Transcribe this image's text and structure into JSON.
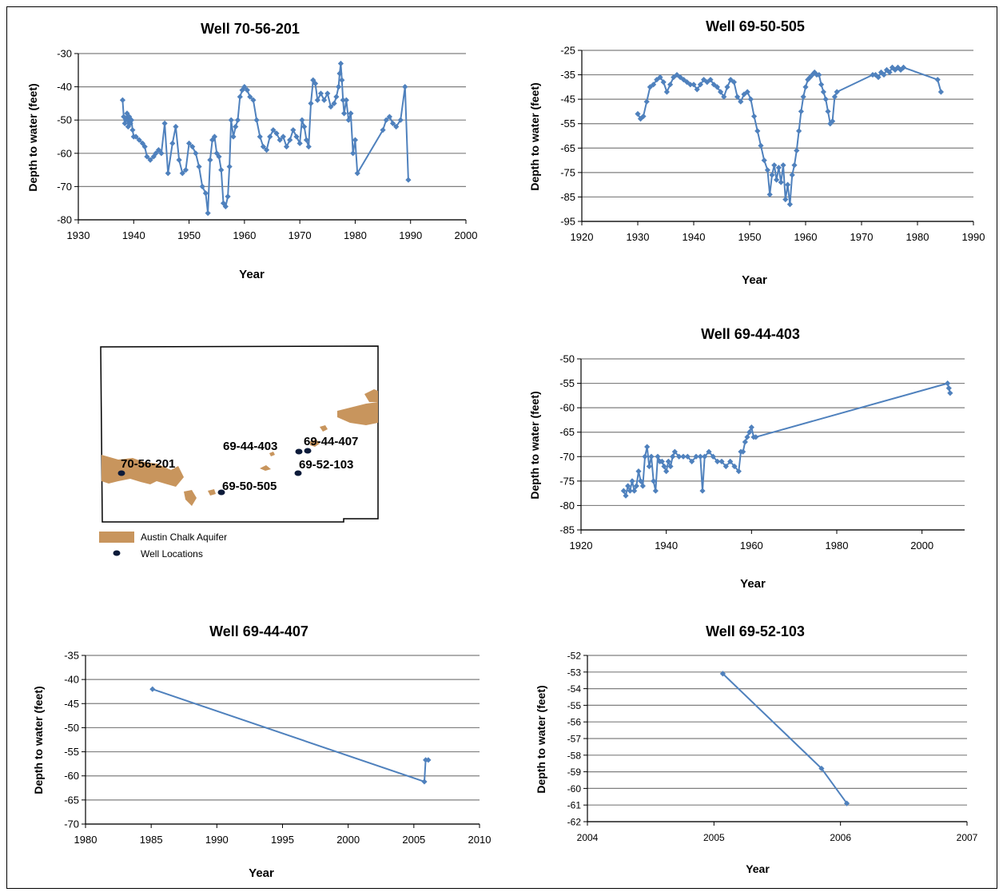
{
  "chart_data": [
    {
      "id": "w1",
      "type": "line",
      "title": "Well  70-56-201",
      "xlabel": "Year",
      "ylabel": "Depth to water (feet)",
      "xlim": [
        1930,
        2000
      ],
      "ylim": [
        -80,
        -30
      ],
      "xticks": [
        1930,
        1940,
        1950,
        1960,
        1970,
        1980,
        1990,
        2000
      ],
      "yticks": [
        -30,
        -40,
        -50,
        -60,
        -70,
        -80
      ],
      "grid": true,
      "series": [
        {
          "x": [
            1938,
            1938.2,
            1938.4,
            1938.6,
            1938.8,
            1939,
            1939.2,
            1939.4,
            1939.6,
            1939.8,
            1940,
            1940.4,
            1941,
            1941.6,
            1942,
            1942.4,
            1943,
            1943.6,
            1944,
            1944.5,
            1945,
            1945.6,
            1946.2,
            1947,
            1947.6,
            1948.2,
            1948.8,
            1949.4,
            1950,
            1950.6,
            1951.2,
            1951.8,
            1952.4,
            1953,
            1953.4,
            1953.8,
            1954.2,
            1954.6,
            1955,
            1955.4,
            1955.8,
            1956.2,
            1956.6,
            1957,
            1957.3,
            1957.6,
            1958,
            1958.4,
            1958.8,
            1959.2,
            1959.6,
            1960,
            1960.5,
            1961,
            1961.6,
            1962.2,
            1962.8,
            1963.4,
            1964,
            1964.6,
            1965.2,
            1965.8,
            1966.4,
            1967,
            1967.6,
            1968.2,
            1968.8,
            1969.4,
            1970,
            1970.4,
            1970.8,
            1971.2,
            1971.6,
            1972,
            1972.4,
            1972.8,
            1973.2,
            1973.8,
            1974.4,
            1975,
            1975.6,
            1976.2,
            1976.6,
            1977,
            1977.2,
            1977.4,
            1977.6,
            1977.8,
            1978,
            1978.4,
            1978.8,
            1979.2,
            1979.6,
            1980,
            1980.4,
            1985,
            1985.6,
            1986.2,
            1986.8,
            1987.4,
            1988.2,
            1989,
            1989.6
          ],
          "y": [
            -44,
            -49,
            -51,
            -50,
            -48,
            -52,
            -49,
            -51,
            -50,
            -53,
            -55,
            -55,
            -56,
            -57,
            -58,
            -61,
            -62,
            -61,
            -60,
            -59,
            -60,
            -51,
            -66,
            -57,
            -52,
            -62,
            -66,
            -65,
            -57,
            -58,
            -60,
            -64,
            -70,
            -72,
            -78,
            -62,
            -56,
            -55,
            -60,
            -61,
            -65,
            -75,
            -76,
            -73,
            -64,
            -50,
            -55,
            -52,
            -50,
            -43,
            -41,
            -40,
            -41,
            -43,
            -44,
            -50,
            -55,
            -58,
            -59,
            -55,
            -53,
            -54,
            -56,
            -55,
            -58,
            -56,
            -53,
            -55,
            -57,
            -50,
            -52,
            -56,
            -58,
            -45,
            -38,
            -39,
            -44,
            -42,
            -44,
            -42,
            -46,
            -45,
            -43,
            -40,
            -36,
            -33,
            -38,
            -44,
            -48,
            -44,
            -50,
            -48,
            -60,
            -56,
            -66,
            -53,
            -50,
            -49,
            -51,
            -52,
            -50,
            -40,
            -68
          ]
        }
      ]
    },
    {
      "id": "w2",
      "type": "line",
      "title": "Well 69-50-505",
      "xlabel": "Year",
      "ylabel": "Depth to water (feet)",
      "xlim": [
        1920,
        1990
      ],
      "ylim": [
        -95,
        -25
      ],
      "xticks": [
        1920,
        1930,
        1940,
        1950,
        1960,
        1970,
        1980,
        1990
      ],
      "yticks": [
        -25,
        -35,
        -45,
        -55,
        -65,
        -75,
        -85,
        -95
      ],
      "grid": true,
      "series": [
        {
          "x": [
            1930,
            1930.5,
            1931,
            1931.6,
            1932.2,
            1932.8,
            1933.4,
            1934,
            1934.6,
            1935.2,
            1935.8,
            1936.4,
            1937,
            1937.6,
            1938.2,
            1938.8,
            1939.4,
            1940,
            1940.6,
            1941.2,
            1941.8,
            1942.4,
            1943,
            1943.6,
            1944.2,
            1944.8,
            1945.4,
            1946,
            1946.6,
            1947.2,
            1947.8,
            1948.4,
            1949,
            1949.6,
            1950.2,
            1950.8,
            1951.4,
            1952,
            1952.6,
            1953.2,
            1953.6,
            1954,
            1954.4,
            1954.8,
            1955.2,
            1955.6,
            1956,
            1956.4,
            1956.8,
            1957.2,
            1957.6,
            1958,
            1958.4,
            1958.8,
            1959.2,
            1959.6,
            1960,
            1960.4,
            1960.8,
            1961.2,
            1961.6,
            1962,
            1962.4,
            1962.8,
            1963.2,
            1963.6,
            1964,
            1964.4,
            1964.8,
            1965.2,
            1965.6,
            1972,
            1972.5,
            1973,
            1973.5,
            1974,
            1974.5,
            1975,
            1975.5,
            1976,
            1976.5,
            1977,
            1977.5,
            1983.6,
            1984.2
          ],
          "y": [
            -51,
            -53,
            -52,
            -46,
            -40,
            -39,
            -37,
            -36,
            -38,
            -42,
            -39,
            -36,
            -35,
            -36,
            -37,
            -38,
            -39,
            -39,
            -41,
            -39,
            -37,
            -38,
            -37,
            -39,
            -40,
            -42,
            -44,
            -40,
            -37,
            -38,
            -44,
            -46,
            -43,
            -42,
            -45,
            -52,
            -58,
            -64,
            -70,
            -74,
            -84,
            -76,
            -72,
            -78,
            -73,
            -79,
            -72,
            -86,
            -80,
            -88,
            -76,
            -72,
            -66,
            -58,
            -50,
            -44,
            -40,
            -37,
            -36,
            -35,
            -34,
            -35,
            -35,
            -39,
            -42,
            -45,
            -50,
            -55,
            -54,
            -44,
            -42,
            -35,
            -35,
            -36,
            -34,
            -35,
            -33,
            -34,
            -32,
            -33,
            -32,
            -33,
            -32,
            -37,
            -42
          ]
        }
      ]
    },
    {
      "id": "w3",
      "type": "line",
      "title": "Well 69-44-403",
      "xlabel": "Year",
      "ylabel": "Depth to water (feet)",
      "xlim": [
        1920,
        2010
      ],
      "ylim": [
        -85,
        -50
      ],
      "xticks": [
        1920,
        1940,
        1960,
        1980,
        2000
      ],
      "yticks": [
        -50,
        -55,
        -60,
        -65,
        -70,
        -75,
        -80,
        -85
      ],
      "grid": true,
      "series": [
        {
          "x": [
            1930,
            1930.5,
            1931,
            1931.5,
            1932,
            1932.5,
            1933,
            1933.5,
            1934,
            1934.5,
            1935,
            1935.5,
            1936,
            1936.5,
            1937,
            1937.5,
            1938,
            1938.5,
            1939,
            1939.5,
            1940,
            1940.5,
            1941,
            1941.5,
            1942,
            1943,
            1944,
            1945,
            1946,
            1947,
            1948,
            1948.5,
            1949,
            1950,
            1951,
            1952,
            1953,
            1954,
            1955,
            1956,
            1957,
            1957.5,
            1958,
            1958.5,
            1959,
            1959.5,
            1960,
            1960.5,
            1961,
            2006,
            2006.3,
            2006.6
          ],
          "y": [
            -77,
            -78,
            -76,
            -77,
            -75,
            -77,
            -76,
            -73,
            -75,
            -76,
            -70,
            -68,
            -72,
            -70,
            -75,
            -77,
            -70,
            -71,
            -71,
            -72,
            -73,
            -71,
            -72,
            -70,
            -69,
            -70,
            -70,
            -70,
            -71,
            -70,
            -70,
            -77,
            -70,
            -69,
            -70,
            -71,
            -71,
            -72,
            -71,
            -72,
            -73,
            -69,
            -69,
            -67,
            -66,
            -65,
            -64,
            -66,
            -66,
            -55,
            -56,
            -57
          ]
        }
      ]
    },
    {
      "id": "w4",
      "type": "line",
      "title": "Well 69-44-407",
      "xlabel": "Year",
      "ylabel": "Depth to water (feet)",
      "xlim": [
        1980,
        2010
      ],
      "ylim": [
        -70,
        -35
      ],
      "xticks": [
        1980,
        1985,
        1990,
        1995,
        2000,
        2005,
        2010
      ],
      "yticks": [
        -35,
        -40,
        -45,
        -50,
        -55,
        -60,
        -65,
        -70
      ],
      "grid": true,
      "series": [
        {
          "x": [
            1985.1,
            2005.8,
            2005.9,
            2006.1
          ],
          "y": [
            -42,
            -61.2,
            -56.7,
            -56.7
          ]
        }
      ]
    },
    {
      "id": "w5",
      "type": "line",
      "title": "Well 69-52-103",
      "xlabel": "Year",
      "ylabel": "Depth to water (feet)",
      "xlim": [
        2004,
        2007
      ],
      "ylim": [
        -62,
        -52
      ],
      "xticks": [
        2004,
        2005,
        2006,
        2007
      ],
      "yticks": [
        -52,
        -53,
        -54,
        -55,
        -56,
        -57,
        -58,
        -59,
        -60,
        -61,
        -62
      ],
      "grid": true,
      "series": [
        {
          "x": [
            2005.07,
            2005.85,
            2006.05
          ],
          "y": [
            -53.1,
            -58.8,
            -60.9
          ]
        }
      ]
    }
  ],
  "map": {
    "wells": [
      {
        "label": "70-56-201"
      },
      {
        "label": "69-44-403"
      },
      {
        "label": "69-44-407"
      },
      {
        "label": "69-52-103"
      },
      {
        "label": "69-50-505"
      }
    ],
    "legend": [
      {
        "label": "Austin Chalk Aquifer",
        "color": "#c8955d"
      },
      {
        "label": "Well Locations",
        "color": "#0d1b3a"
      }
    ]
  },
  "colors": {
    "series": "#4f81bd",
    "grid": "#7f7f7f",
    "aquifer": "#c8955d",
    "well": "#0d1b3a"
  }
}
